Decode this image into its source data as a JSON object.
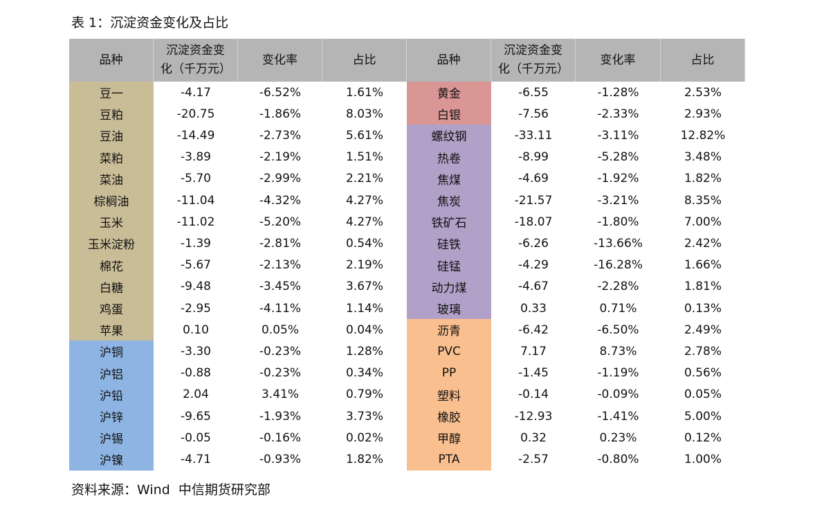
{
  "title": "表 1：沉淀资金变化及占比",
  "table": {
    "header": [
      "品种",
      "沉淀资金变化（千万元）",
      "变化率",
      "占比",
      "品种",
      "沉淀资金变化（千万元）",
      "变化率",
      "占比"
    ],
    "left_groups": [
      {
        "color": "#c9bd97",
        "rows": [
          [
            "豆一",
            "-4.17",
            "-6.52%",
            "1.61%"
          ],
          [
            "豆粕",
            "-20.75",
            "-1.86%",
            "8.03%"
          ],
          [
            "豆油",
            "-14.49",
            "-2.73%",
            "5.61%"
          ],
          [
            "菜粕",
            "-3.89",
            "-2.19%",
            "1.51%"
          ],
          [
            "菜油",
            "-5.70",
            "-2.99%",
            "2.21%"
          ],
          [
            "棕榈油",
            "-11.04",
            "-4.32%",
            "4.27%"
          ],
          [
            "玉米",
            "-11.02",
            "-5.20%",
            "4.27%"
          ],
          [
            "玉米淀粉",
            "-1.39",
            "-2.81%",
            "0.54%"
          ],
          [
            "棉花",
            "-5.67",
            "-2.13%",
            "2.19%"
          ],
          [
            "白糖",
            "-9.48",
            "-3.45%",
            "3.67%"
          ],
          [
            "鸡蛋",
            "-2.95",
            "-4.11%",
            "1.14%"
          ],
          [
            "苹果",
            "0.10",
            "0.05%",
            "0.04%"
          ]
        ]
      },
      {
        "color": "#8db4e2",
        "rows": [
          [
            "沪铜",
            "-3.30",
            "-0.23%",
            "1.28%"
          ],
          [
            "沪铝",
            "-0.88",
            "-0.23%",
            "0.34%"
          ],
          [
            "沪铅",
            "2.04",
            "3.41%",
            "0.79%"
          ],
          [
            "沪锌",
            "-9.65",
            "-1.93%",
            "3.73%"
          ],
          [
            "沪锡",
            "-0.05",
            "-0.16%",
            "0.02%"
          ],
          [
            "沪镍",
            "-4.71",
            "-0.93%",
            "1.82%"
          ]
        ]
      }
    ],
    "right_groups": [
      {
        "color": "#da9694",
        "rows": [
          [
            "黄金",
            "-6.55",
            "-1.28%",
            "2.53%"
          ],
          [
            "白银",
            "-7.56",
            "-2.33%",
            "2.93%"
          ]
        ]
      },
      {
        "color": "#b1a0c7",
        "rows": [
          [
            "螺纹钢",
            "-33.11",
            "-3.11%",
            "12.82%"
          ],
          [
            "热卷",
            "-8.99",
            "-5.28%",
            "3.48%"
          ],
          [
            "焦煤",
            "-4.69",
            "-1.92%",
            "1.82%"
          ],
          [
            "焦炭",
            "-21.57",
            "-3.21%",
            "8.35%"
          ],
          [
            "铁矿石",
            "-18.07",
            "-1.80%",
            "7.00%"
          ],
          [
            "硅铁",
            "-6.26",
            "-13.66%",
            "2.42%"
          ],
          [
            "硅锰",
            "-4.29",
            "-16.28%",
            "1.66%"
          ],
          [
            "动力煤",
            "-4.67",
            "-2.28%",
            "1.81%"
          ],
          [
            "玻璃",
            "0.33",
            "0.71%",
            "0.13%"
          ]
        ]
      },
      {
        "color": "#fabf8f",
        "rows": [
          [
            "沥青",
            "-6.42",
            "-6.50%",
            "2.49%"
          ],
          [
            "PVC",
            "7.17",
            "8.73%",
            "2.78%"
          ],
          [
            "PP",
            "-1.45",
            "-1.19%",
            "0.56%"
          ],
          [
            "塑料",
            "-0.14",
            "-0.09%",
            "0.05%"
          ],
          [
            "橡胶",
            "-12.93",
            "-1.41%",
            "5.00%"
          ],
          [
            "甲醇",
            "0.32",
            "0.23%",
            "0.12%"
          ],
          [
            "PTA",
            "-2.57",
            "-0.80%",
            "1.00%"
          ]
        ]
      }
    ]
  },
  "source": "资料来源：Wind  中信期货研究部"
}
